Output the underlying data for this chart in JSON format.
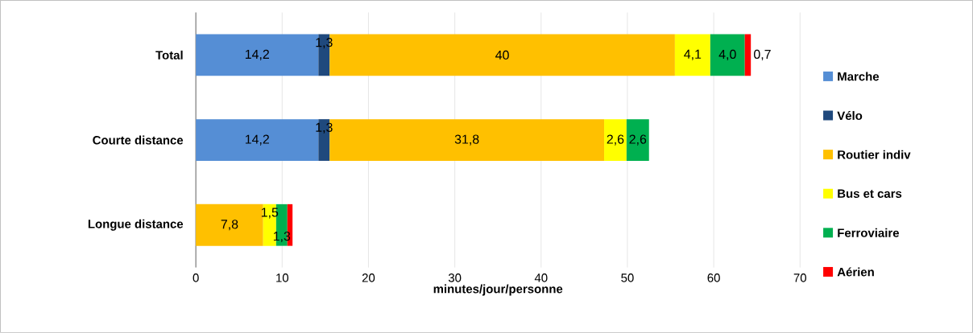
{
  "chart_data": {
    "type": "bar",
    "orientation": "horizontal",
    "stacked": true,
    "xlabel": "minutes/jour/personne",
    "categories": [
      "Total",
      "Courte distance",
      "Longue distance"
    ],
    "series": [
      {
        "name": "Marche",
        "color": "#558ed5",
        "values": [
          14.2,
          14.2,
          null
        ],
        "value_labels": [
          "14,2",
          "14,2",
          null
        ]
      },
      {
        "name": "Vélo",
        "color": "#1f497d",
        "values": [
          1.3,
          1.3,
          null
        ],
        "value_labels": [
          "1,3",
          "1,3",
          null
        ]
      },
      {
        "name": "Routier indiv",
        "color": "#ffc000",
        "values": [
          40,
          31.8,
          7.8
        ],
        "value_labels": [
          "40",
          "31,8",
          "7,8"
        ]
      },
      {
        "name": "Bus et cars",
        "color": "#ffff00",
        "values": [
          4.1,
          2.6,
          1.5
        ],
        "value_labels": [
          "4,1",
          "2,6",
          "1,5"
        ]
      },
      {
        "name": "Ferroviaire",
        "color": "#00b050",
        "values": [
          4.0,
          2.6,
          1.3
        ],
        "value_labels": [
          "4,0",
          "2,6",
          "1,3"
        ]
      },
      {
        "name": "Aérien",
        "color": "#ff0000",
        "values": [
          0.7,
          null,
          0.6
        ],
        "value_labels": [
          "0,7",
          null,
          null
        ]
      }
    ],
    "xlim": [
      0,
      70
    ],
    "xticks": [
      0,
      10,
      20,
      30,
      40,
      50,
      60,
      70
    ],
    "grid": "x",
    "legend": "right"
  }
}
